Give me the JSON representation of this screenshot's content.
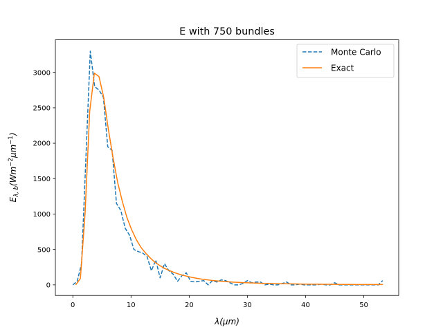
{
  "chart_data": {
    "type": "line",
    "title": "E with 750 bundles",
    "xlabel_main": "λ(μm)",
    "ylabel_main": "E",
    "ylabel_sub": "λ, b",
    "ylabel_unit_open": "(W",
    "ylabel_unit_m": "m",
    "ylabel_unit_exp1": "−2",
    "ylabel_unit_mu": "μ",
    "ylabel_unit_exp2": "−1",
    "ylabel_unit_close": ")",
    "xlim": [
      -3,
      56
    ],
    "ylim": [
      -150,
      3460
    ],
    "x_ticks": [
      0,
      10,
      20,
      30,
      40,
      50
    ],
    "y_ticks": [
      0,
      500,
      1000,
      1500,
      2000,
      2500,
      3000
    ],
    "legend_position": "upper right",
    "series": [
      {
        "name": "Monte Carlo",
        "color": "#1f77b4",
        "style": "dashed",
        "x": [
          0.0,
          0.75,
          1.5,
          2.25,
          3.0,
          3.75,
          4.5,
          5.25,
          6.0,
          6.75,
          7.5,
          8.25,
          9.0,
          9.75,
          10.5,
          11.25,
          12.0,
          12.75,
          13.5,
          14.25,
          15.0,
          15.75,
          16.5,
          17.25,
          18.0,
          18.75,
          19.5,
          20.25,
          21.0,
          21.75,
          22.5,
          23.25,
          24.0,
          24.75,
          25.5,
          26.25,
          27.0,
          27.75,
          28.5,
          29.25,
          30.0,
          30.75,
          31.5,
          32.25,
          33.0,
          33.75,
          34.5,
          35.25,
          36.0,
          36.75,
          37.5,
          38.25,
          39.0,
          39.75,
          40.5,
          41.25,
          42.0,
          42.75,
          43.5,
          44.25,
          45.0,
          45.75,
          46.5,
          47.25,
          48.0,
          48.75,
          49.5,
          50.25,
          51.0,
          51.75,
          52.5,
          53.25
        ],
        "y": [
          0,
          50,
          300,
          1800,
          3300,
          2800,
          2750,
          2650,
          1950,
          1900,
          1150,
          1050,
          800,
          700,
          500,
          470,
          450,
          400,
          200,
          350,
          100,
          300,
          200,
          150,
          50,
          130,
          170,
          50,
          40,
          50,
          60,
          0,
          60,
          40,
          70,
          60,
          30,
          0,
          0,
          20,
          60,
          30,
          40,
          40,
          0,
          10,
          0,
          0,
          20,
          40,
          0,
          0,
          10,
          0,
          0,
          0,
          0,
          10,
          0,
          0,
          30,
          0,
          0,
          0,
          0,
          0,
          0,
          0,
          0,
          0,
          0,
          60
        ]
      },
      {
        "name": "Exact",
        "color": "#ff7f0e",
        "style": "solid",
        "x": [
          0.5,
          1.3,
          2.1,
          2.9,
          3.7,
          4.5,
          5.3,
          6.1,
          6.9,
          7.7,
          8.5,
          9.3,
          10.1,
          10.9,
          11.7,
          12.5,
          13.3,
          14.1,
          14.9,
          15.7,
          16.5,
          17.3,
          18.1,
          18.9,
          19.7,
          20.5,
          21.3,
          22.1,
          22.9,
          23.7,
          24.5,
          25.3,
          26.1,
          26.9,
          27.7,
          28.5,
          29.3,
          30.1,
          30.9,
          31.7,
          32.5,
          33.3,
          34.1,
          34.9,
          35.7,
          36.5,
          37.3,
          38.1,
          38.9,
          39.7,
          40.5,
          41.3,
          42.1,
          42.9,
          43.7,
          44.5,
          45.3,
          46.1,
          46.9,
          47.7,
          48.5,
          49.3,
          50.1,
          50.9,
          51.7,
          52.5,
          53.3
        ],
        "y": [
          0,
          90,
          1000,
          2450,
          2990,
          2940,
          2650,
          2200,
          1800,
          1450,
          1180,
          950,
          780,
          640,
          530,
          450,
          380,
          320,
          275,
          235,
          205,
          178,
          155,
          135,
          120,
          105,
          92,
          82,
          73,
          65,
          58,
          52,
          47,
          42,
          38,
          35,
          32,
          29,
          26,
          24,
          22,
          20,
          19,
          17,
          16,
          15,
          14,
          13,
          12,
          11,
          10,
          10,
          9,
          8,
          8,
          7,
          7,
          6,
          6,
          6,
          5,
          5,
          5,
          4,
          4,
          4,
          4
        ]
      }
    ]
  }
}
